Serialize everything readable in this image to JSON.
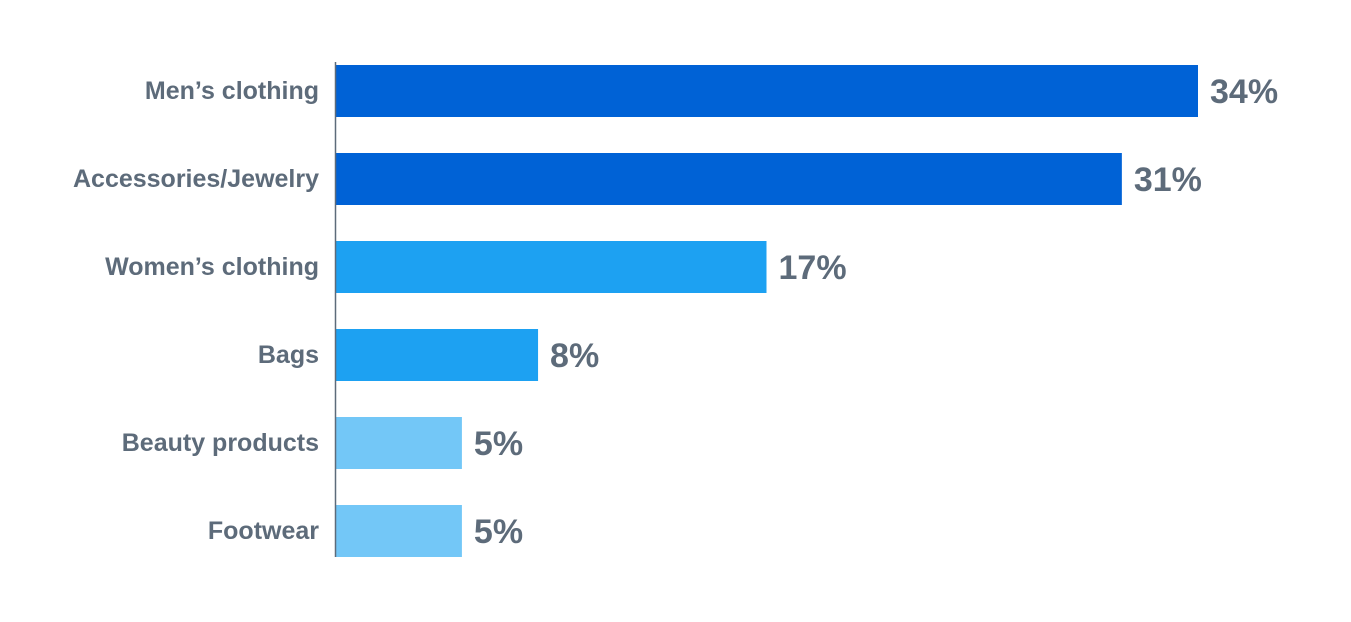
{
  "colors": {
    "label": "#5d6b7a",
    "axis": "#5d6b7a",
    "bar_dark": "#0062d6",
    "bar_mid": "#1da1f2",
    "bar_light": "#73c7f7"
  },
  "chart_data": {
    "type": "bar",
    "orientation": "horizontal",
    "title": "",
    "xlabel": "",
    "ylabel": "",
    "grid": false,
    "legend": "none",
    "xlim": [
      0,
      34
    ],
    "categories": [
      "Men’s clothing",
      "Accessories/Jewelry",
      "Women’s clothing",
      "Bags",
      "Beauty products",
      "Footwear"
    ],
    "values": [
      34,
      31,
      17,
      8,
      5,
      5
    ],
    "value_labels": [
      "34%",
      "31%",
      "17%",
      "8%",
      "5%",
      "5%"
    ],
    "bar_colors": [
      "#0062d6",
      "#0062d6",
      "#1da1f2",
      "#1da1f2",
      "#73c7f7",
      "#73c7f7"
    ]
  }
}
